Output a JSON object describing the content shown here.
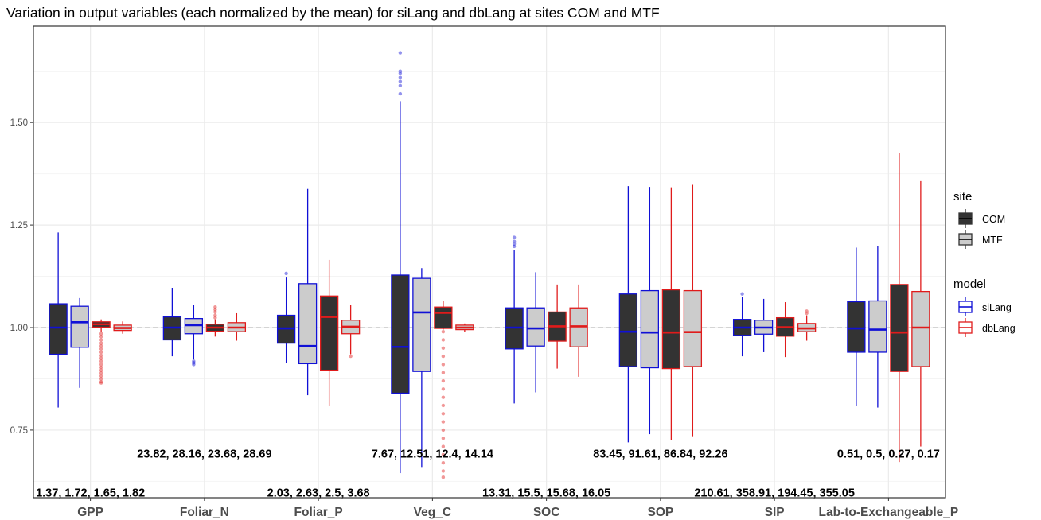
{
  "colors": {
    "panel_border": "#333333",
    "grid_major": "#ebebeb",
    "grid_minor": "#f4f4f4",
    "ref_line": "#bdbdbd",
    "site_COM": "#333333",
    "site_MTF": "#cccccc",
    "model_siLang": "#1010d6",
    "model_dbLang": "#e01b1b"
  },
  "chart_data": {
    "type": "boxplot",
    "title": "Variation in output variables (each normalized by the mean) for siLang and dbLang at sites COM and MTF",
    "xlabel": "",
    "ylabel": "",
    "ylim": [
      0.585,
      1.735
    ],
    "yticks": [
      0.75,
      1.0,
      1.25,
      1.5
    ],
    "ytick_labels": [
      "0.75",
      "1.00",
      "1.25",
      "1.50"
    ],
    "reference_line": 1.0,
    "grid": true,
    "categories": [
      "GPP",
      "Foliar_N",
      "Foliar_P",
      "Veg_C",
      "SOC",
      "SOP",
      "SIP",
      "Lab-to-Exchangeable_P"
    ],
    "group_order": [
      "siLang / COM",
      "siLang / MTF",
      "dbLang / COM",
      "dbLang / MTF"
    ],
    "boxes": [
      [
        {
          "q1": 0.935,
          "med": 1.0,
          "q3": 1.058,
          "lo": 0.805,
          "hi": 1.232,
          "outliers": []
        },
        {
          "q1": 0.952,
          "med": 1.013,
          "q3": 1.052,
          "lo": 0.853,
          "hi": 1.072,
          "outliers": []
        },
        {
          "q1": 1.001,
          "med": 1.008,
          "q3": 1.014,
          "lo": 0.99,
          "hi": 1.02,
          "outliers": [
            0.985,
            0.978,
            0.97,
            0.962,
            0.955,
            0.948,
            0.94,
            0.932,
            0.925,
            0.918,
            0.91,
            0.903,
            0.896,
            0.889,
            0.882,
            0.875,
            0.868,
            0.865
          ]
        },
        {
          "q1": 0.993,
          "med": 0.999,
          "q3": 1.006,
          "lo": 0.985,
          "hi": 1.015,
          "outliers": []
        }
      ],
      [
        {
          "q1": 0.97,
          "med": 1.0,
          "q3": 1.026,
          "lo": 0.93,
          "hi": 1.097,
          "outliers": []
        },
        {
          "q1": 0.985,
          "med": 1.006,
          "q3": 1.022,
          "lo": 0.922,
          "hi": 1.055,
          "outliers": [
            0.918,
            0.914,
            0.91
          ]
        },
        {
          "q1": 0.991,
          "med": 1.0,
          "q3": 1.008,
          "lo": 0.978,
          "hi": 1.02,
          "outliers": [
            1.024,
            1.03,
            1.038,
            1.044,
            1.05
          ]
        },
        {
          "q1": 0.99,
          "med": 1.0,
          "q3": 1.012,
          "lo": 0.968,
          "hi": 1.035,
          "outliers": []
        }
      ],
      [
        {
          "q1": 0.962,
          "med": 0.998,
          "q3": 1.03,
          "lo": 0.913,
          "hi": 1.122,
          "outliers": [
            1.132
          ]
        },
        {
          "q1": 0.912,
          "med": 0.955,
          "q3": 1.107,
          "lo": 0.835,
          "hi": 1.338,
          "outliers": []
        },
        {
          "q1": 0.896,
          "med": 1.026,
          "q3": 1.077,
          "lo": 0.81,
          "hi": 1.165,
          "outliers": []
        },
        {
          "q1": 0.985,
          "med": 1.002,
          "q3": 1.018,
          "lo": 0.935,
          "hi": 1.055,
          "outliers": [
            0.93
          ]
        }
      ],
      [
        {
          "q1": 0.84,
          "med": 0.953,
          "q3": 1.128,
          "lo": 0.645,
          "hi": 1.552,
          "outliers": [
            1.57,
            1.59,
            1.6,
            1.61,
            1.62,
            1.625,
            1.67
          ]
        },
        {
          "q1": 0.893,
          "med": 1.037,
          "q3": 1.12,
          "lo": 0.66,
          "hi": 1.145,
          "outliers": []
        },
        {
          "q1": 0.998,
          "med": 1.036,
          "q3": 1.05,
          "lo": 0.995,
          "hi": 1.065,
          "outliers": [
            0.99,
            0.97,
            0.95,
            0.93,
            0.91,
            0.89,
            0.87,
            0.85,
            0.83,
            0.81,
            0.79,
            0.77,
            0.75,
            0.73,
            0.71,
            0.69,
            0.67,
            0.65,
            0.635
          ]
        },
        {
          "q1": 0.995,
          "med": 1.0,
          "q3": 1.006,
          "lo": 0.99,
          "hi": 1.01,
          "outliers": []
        }
      ],
      [
        {
          "q1": 0.948,
          "med": 1.0,
          "q3": 1.048,
          "lo": 0.815,
          "hi": 1.19,
          "outliers": [
            1.198,
            1.204,
            1.21,
            1.22
          ]
        },
        {
          "q1": 0.955,
          "med": 0.998,
          "q3": 1.048,
          "lo": 0.842,
          "hi": 1.135,
          "outliers": []
        },
        {
          "q1": 0.967,
          "med": 1.003,
          "q3": 1.038,
          "lo": 0.9,
          "hi": 1.105,
          "outliers": []
        },
        {
          "q1": 0.953,
          "med": 1.003,
          "q3": 1.048,
          "lo": 0.88,
          "hi": 1.105,
          "outliers": []
        }
      ],
      [
        {
          "q1": 0.905,
          "med": 0.99,
          "q3": 1.082,
          "lo": 0.72,
          "hi": 1.345,
          "outliers": []
        },
        {
          "q1": 0.902,
          "med": 0.988,
          "q3": 1.09,
          "lo": 0.74,
          "hi": 1.343,
          "outliers": []
        },
        {
          "q1": 0.9,
          "med": 0.988,
          "q3": 1.092,
          "lo": 0.725,
          "hi": 1.342,
          "outliers": []
        },
        {
          "q1": 0.905,
          "med": 0.989,
          "q3": 1.09,
          "lo": 0.735,
          "hi": 1.348,
          "outliers": []
        }
      ],
      [
        {
          "q1": 0.981,
          "med": 1.0,
          "q3": 1.02,
          "lo": 0.93,
          "hi": 1.075,
          "outliers": [
            1.082
          ]
        },
        {
          "q1": 0.984,
          "med": 1.0,
          "q3": 1.018,
          "lo": 0.94,
          "hi": 1.07,
          "outliers": []
        },
        {
          "q1": 0.979,
          "med": 1.001,
          "q3": 1.024,
          "lo": 0.928,
          "hi": 1.062,
          "outliers": []
        },
        {
          "q1": 0.99,
          "med": 0.998,
          "q3": 1.01,
          "lo": 0.968,
          "hi": 1.03,
          "outliers": [
            1.035,
            1.04
          ]
        }
      ],
      [
        {
          "q1": 0.94,
          "med": 0.998,
          "q3": 1.063,
          "lo": 0.81,
          "hi": 1.195,
          "outliers": []
        },
        {
          "q1": 0.94,
          "med": 0.995,
          "q3": 1.065,
          "lo": 0.805,
          "hi": 1.198,
          "outliers": []
        },
        {
          "q1": 0.893,
          "med": 0.988,
          "q3": 1.105,
          "lo": 0.672,
          "hi": 1.425,
          "outliers": []
        },
        {
          "q1": 0.905,
          "med": 1.0,
          "q3": 1.088,
          "lo": 0.71,
          "hi": 1.357,
          "outliers": []
        }
      ]
    ],
    "annotations": [
      {
        "text": "1.37, 1.72, 1.65, 1.82",
        "x": 1,
        "y": 0.6
      },
      {
        "text": "23.82, 28.16, 23.68, 28.69",
        "x": 2,
        "y": 0.695
      },
      {
        "text": "2.03, 2.63, 2.5, 3.68",
        "x": 3,
        "y": 0.6
      },
      {
        "text": "7.67, 12.51, 12.4, 14.14",
        "x": 4,
        "y": 0.695
      },
      {
        "text": "13.31, 15.5, 15.68, 16.05",
        "x": 5,
        "y": 0.6
      },
      {
        "text": "83.45, 91.61, 86.84, 92.26",
        "x": 6,
        "y": 0.695
      },
      {
        "text": "210.61, 358.91, 194.45, 355.05",
        "x": 7,
        "y": 0.6
      },
      {
        "text": "0.51, 0.5, 0.27, 0.17",
        "x": 8,
        "y": 0.695
      }
    ],
    "legend": {
      "placement": "right",
      "site": {
        "title": "site",
        "items": [
          "COM",
          "MTF"
        ]
      },
      "model": {
        "title": "model",
        "items": [
          "siLang",
          "dbLang"
        ]
      }
    }
  }
}
